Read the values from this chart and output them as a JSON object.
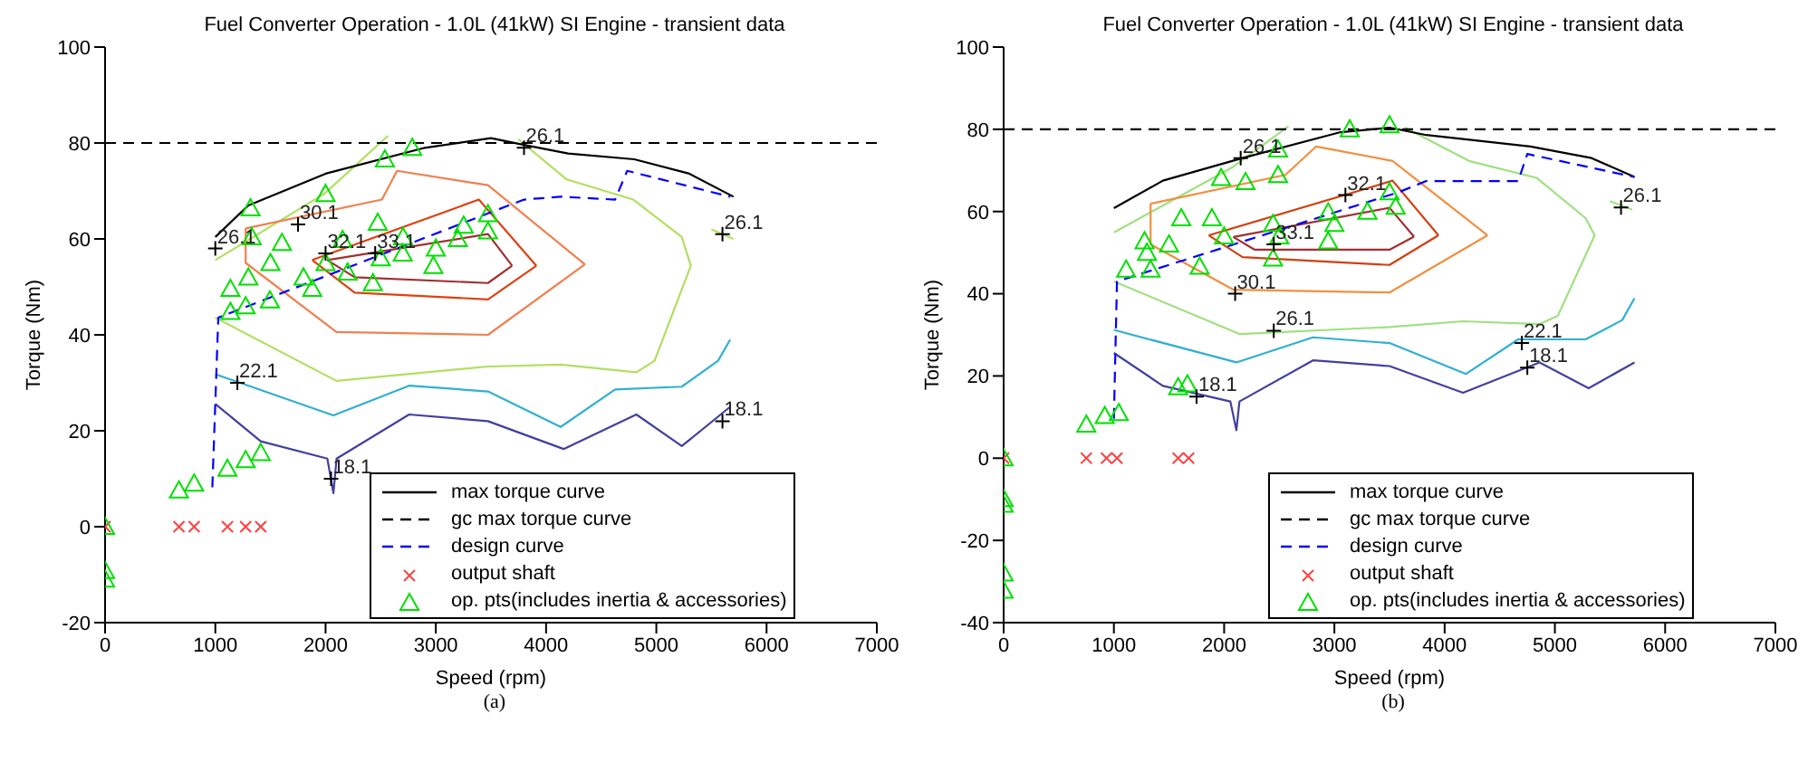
{
  "chart_data": [
    {
      "type": "line",
      "title": "Fuel Converter Operation - 1.0L (41kW) SI Engine - transient data",
      "xlabel": "Speed (rpm)",
      "ylabel": "Torque (Nm)",
      "xlim": [
        0,
        7000
      ],
      "xticks": [
        0,
        1000,
        2000,
        3000,
        4000,
        5000,
        6000,
        7000
      ],
      "ylim": [
        -20,
        100
      ],
      "yticks": [
        -20,
        0,
        20,
        40,
        60,
        80,
        100
      ],
      "legend": "bottom right",
      "grid": false,
      "series": [
        {
          "type": "line",
          "color": "#4040a0",
          "x": [
            1000,
            1412,
            2016,
            2071,
            2100,
            2758,
            3473,
            4159,
            4819,
            5231,
            5670
          ],
          "values": [
            25.6,
            17.8,
            14.2,
            7,
            14.2,
            23.4,
            22,
            16.2,
            23.4,
            16.8,
            25
          ]
        },
        {
          "type": "line",
          "color": "#30b0d0",
          "x": [
            1000,
            2071,
            2758,
            3473,
            4132,
            4626,
            5231,
            5560,
            5670
          ],
          "values": [
            31.8,
            23.2,
            29.4,
            28.2,
            20.8,
            28.6,
            29.2,
            34.6,
            39
          ]
        },
        {
          "type": "line",
          "color": "#b0e060",
          "x": [
            1000,
            2099,
            3473,
            4132,
            4819,
            4984,
            5313,
            5231,
            4791,
            4187,
            3747
          ],
          "values": [
            43.6,
            30.4,
            33.4,
            33.8,
            32.2,
            34.6,
            54.4,
            60.4,
            68.2,
            72.4,
            80.8
          ]
        },
        {
          "type": "line",
          "color": "#b0e060",
          "x": [
            1000,
            1989,
            2566
          ],
          "values": [
            55.6,
            69.4,
            81.5
          ]
        },
        {
          "color": "#b0e060",
          "x": [
            5500,
            5700
          ],
          "values": [
            62,
            60
          ]
        },
        {
          "color": "#f08050",
          "x": [
            1275,
            2511,
            2648,
            3473,
            4352
          ],
          "values": [
            62.2,
            68.2,
            74.2,
            71.2,
            54.7
          ]
        },
        {
          "color": "#f08050",
          "x": [
            1275,
            1275,
            2099,
            3473,
            4352
          ],
          "values": [
            62.2,
            55,
            40.6,
            40,
            54.7
          ]
        },
        {
          "color": "#e04010",
          "x": [
            1879,
            3390,
            3912
          ],
          "values": [
            55.6,
            68.2,
            54.4
          ]
        },
        {
          "color": "#e04010",
          "x": [
            1879,
            2264,
            3473,
            3912
          ],
          "values": [
            55.6,
            48.8,
            47.4,
            54.4
          ]
        },
        {
          "color": "#a03030",
          "x": [
            2016,
            3473,
            3692
          ],
          "values": [
            55.6,
            61,
            54.4
          ]
        },
        {
          "color": "#a03030",
          "x": [
            2016,
            2264,
            3473,
            3692
          ],
          "values": [
            55.6,
            52,
            50.8,
            54.4
          ]
        },
        {
          "name": "max torque curve",
          "type": "line",
          "color": "#000000",
          "line_style": "solid",
          "x": [
            1000,
            1300,
            2000,
            2900,
            3500,
            3800,
            4200,
            4800,
            5300,
            5700
          ],
          "values": [
            60.4,
            67,
            73.6,
            79,
            81,
            79.6,
            77.8,
            76.6,
            73.6,
            68.8
          ]
        },
        {
          "name": "gc max torque curve",
          "type": "line",
          "color": "#000000",
          "line_style": "dashed",
          "x": [
            0,
            7000
          ],
          "values": [
            80,
            80
          ]
        },
        {
          "name": "design curve",
          "type": "line",
          "color": "#0000ff",
          "line_style": "dashed",
          "x": [
            973,
            1027,
            3527,
            3800,
            4132,
            4626,
            4736,
            5670
          ],
          "values": [
            8.2,
            43.6,
            65.8,
            68.2,
            68.8,
            68.2,
            74.2,
            68.8
          ]
        },
        {
          "name": "output shaft",
          "type": "scatter",
          "color": "#ff4040",
          "marker": "cross",
          "x": [
            0,
            670,
            808,
            1110,
            1275,
            1412
          ],
          "values": [
            0,
            0,
            0,
            0,
            0,
            0
          ]
        },
        {
          "name": "op. pts(includes inertia & accessories)",
          "type": "scatter",
          "color": "#00e000",
          "marker": "triangle",
          "x": [
            0,
            0,
            0,
            670,
            808,
            1110,
            1275,
            1412,
            1319,
            2000,
            2538,
            2786,
            2473,
            1137,
            1137,
            1330,
            1604,
            2154,
            2703,
            3253,
            3473,
            3473,
            2978,
            2429,
            1879,
            1495,
            1275,
            1500,
            2000,
            2500,
            3000,
            1300,
            1800,
            2200,
            2700,
            3200
          ],
          "values": [
            0,
            -9.2,
            -11,
            7.6,
            9,
            12.1,
            13.9,
            15.4,
            66.4,
            69.4,
            76.6,
            79,
            63.4,
            44.8,
            49.6,
            60.4,
            59.2,
            59.8,
            60.4,
            62.8,
            65.2,
            61.6,
            54.4,
            50.8,
            49.6,
            47.2,
            46,
            55,
            55,
            56,
            58,
            52,
            52,
            53,
            57,
            60
          ]
        }
      ],
      "annotations": [
        {
          "text": "26.1",
          "x": 1000,
          "y": 58
        },
        {
          "text": "30.1",
          "x": 1750,
          "y": 63
        },
        {
          "text": "32.1",
          "x": 2000,
          "y": 57
        },
        {
          "text": "33.1",
          "x": 2450,
          "y": 57
        },
        {
          "text": "22.1",
          "x": 1200,
          "y": 30
        },
        {
          "text": "18.1",
          "x": 2050,
          "y": 10
        },
        {
          "text": "26.1",
          "x": 3800,
          "y": 79
        },
        {
          "text": "26.1",
          "x": 5600,
          "y": 61
        },
        {
          "text": "18.1",
          "x": 5600,
          "y": 22
        },
        "(a)"
      ]
    },
    {
      "type": "line",
      "title": "Fuel Converter Operation - 1.0L (41kW) SI Engine - transient data",
      "xlabel": "Speed (rpm)",
      "ylabel": "Torque (Nm)",
      "xlim": [
        0,
        7000
      ],
      "xticks": [
        0,
        1000,
        2000,
        3000,
        4000,
        5000,
        6000,
        7000
      ],
      "ylim": [
        -40,
        100
      ],
      "yticks": [
        -40,
        -20,
        0,
        20,
        40,
        60,
        80,
        100
      ],
      "legend": "bottom right",
      "grid": false,
      "series": [
        {
          "type": "line",
          "color": "#4040a0",
          "x": [
            1000,
            1444,
            2056,
            2111,
            2139,
            2806,
            3500,
            4167,
            4861,
            5306,
            5722
          ],
          "values": [
            25.6,
            17.6,
            13.8,
            6.8,
            13.8,
            23.8,
            22.4,
            15.9,
            23.3,
            17,
            23.3
          ]
        },
        {
          "type": "line",
          "color": "#30b0d0",
          "x": [
            1000,
            2111,
            2806,
            3500,
            4194,
            4667,
            5278,
            5611,
            5722
          ],
          "values": [
            31.2,
            23.3,
            29.4,
            28,
            20.5,
            28.9,
            28.9,
            33.6,
            38.9
          ]
        },
        {
          "type": "line",
          "color": "#a0e080",
          "x": [
            1000,
            2139,
            3500,
            4167,
            4861,
            5028,
            5361,
            5278,
            4833,
            4222,
            3639
          ],
          "values": [
            43,
            30.2,
            31.9,
            33.3,
            32.6,
            34.7,
            54.2,
            58.4,
            68.2,
            72.3,
            80.4
          ]
        },
        {
          "type": "line",
          "color": "#a0e080",
          "x": [
            1000,
            2083,
            2583
          ],
          "values": [
            54.9,
            70.9,
            80.7
          ]
        },
        {
          "color": "#a0e080",
          "x": [
            5500,
            5700
          ],
          "values": [
            62.5,
            60.5
          ]
        },
        {
          "color": "#f09040",
          "x": [
            1333,
            2556,
            2833,
            3528,
            4389
          ],
          "values": [
            61.9,
            68.9,
            75.8,
            72.3,
            54.2
          ]
        },
        {
          "color": "#f09040",
          "x": [
            1333,
            1333,
            2083,
            3500,
            4389
          ],
          "values": [
            61.9,
            52,
            41,
            40.3,
            54.2
          ]
        },
        {
          "color": "#d04010",
          "x": [
            1861,
            3528,
            3944
          ],
          "values": [
            54.2,
            67.5,
            54.2
          ]
        },
        {
          "color": "#d04010",
          "x": [
            1861,
            2167,
            3500,
            3944
          ],
          "values": [
            54.2,
            48.9,
            47,
            54.2
          ]
        },
        {
          "color": "#a03030",
          "x": [
            2083,
            3500,
            3722
          ],
          "values": [
            53.8,
            60.9,
            53.9
          ]
        },
        {
          "color": "#a03030",
          "x": [
            2083,
            2278,
            3500,
            3722
          ],
          "values": [
            53.8,
            50.7,
            50.7,
            53.9
          ]
        },
        {
          "name": "max torque curve",
          "type": "line",
          "color": "#000000",
          "line_style": "solid",
          "x": [
            1000,
            1444,
            2167,
            3056,
            3500,
            3833,
            4778,
            5333,
            5722
          ],
          "values": [
            60.8,
            67.5,
            73,
            79.3,
            80.4,
            78.6,
            75.8,
            73,
            68.4
          ]
        },
        {
          "name": "gc max torque curve",
          "type": "line",
          "color": "#000000",
          "line_style": "dashed",
          "x": [
            0,
            7000
          ],
          "values": [
            80,
            80
          ]
        },
        {
          "name": "design curve",
          "type": "line",
          "color": "#0000ff",
          "line_style": "dashed",
          "x": [
            1000,
            1028,
            3583,
            3833,
            4667,
            4750,
            5722
          ],
          "values": [
            9.6,
            43,
            64.7,
            67.4,
            67.4,
            74,
            68.4
          ]
        },
        {
          "name": "output shaft",
          "type": "scatter",
          "color": "#ff4040",
          "marker": "cross",
          "x": [
            0,
            750,
            933,
            1028,
            1583,
            1678
          ],
          "values": [
            0,
            0,
            0,
            0,
            0,
            0
          ]
        },
        {
          "name": "op. pts(includes inertia & accessories)",
          "type": "scatter",
          "color": "#00e000",
          "marker": "triangle",
          "x": [
            0,
            0,
            0,
            0,
            0,
            750,
            917,
            1044,
            1583,
            1667,
            1972,
            2194,
            2489,
            2489,
            3139,
            3500,
            1111,
            1278,
            1611,
            1889,
            2444,
            2944,
            3500,
            3556,
            2944,
            2444,
            1778,
            1333,
            1500,
            2000,
            2500,
            3000,
            3300,
            1300
          ],
          "values": [
            0,
            -9.9,
            -11.3,
            -28,
            -32.2,
            8.2,
            10.3,
            11,
            17.3,
            18,
            68.2,
            67.2,
            68.9,
            75.1,
            80,
            81,
            45.9,
            52.8,
            58.4,
            58.4,
            57,
            59.8,
            64.7,
            61.2,
            52.8,
            48.6,
            46.6,
            45.9,
            52,
            54,
            54,
            57,
            60,
            50
          ]
        }
      ],
      "annotations": [
        {
          "text": "26.1",
          "x": 2150,
          "y": 73
        },
        {
          "text": "32.1",
          "x": 3100,
          "y": 64
        },
        {
          "text": "33.1",
          "x": 2450,
          "y": 52
        },
        {
          "text": "30.1",
          "x": 2100,
          "y": 40
        },
        {
          "text": "26.1",
          "x": 2450,
          "y": 31
        },
        {
          "text": "18.1",
          "x": 1750,
          "y": 15
        },
        {
          "text": "22.1",
          "x": 4700,
          "y": 28
        },
        {
          "text": "18.1",
          "x": 4750,
          "y": 22
        },
        {
          "text": "26.1",
          "x": 5600,
          "y": 61
        },
        "(b)"
      ]
    }
  ]
}
